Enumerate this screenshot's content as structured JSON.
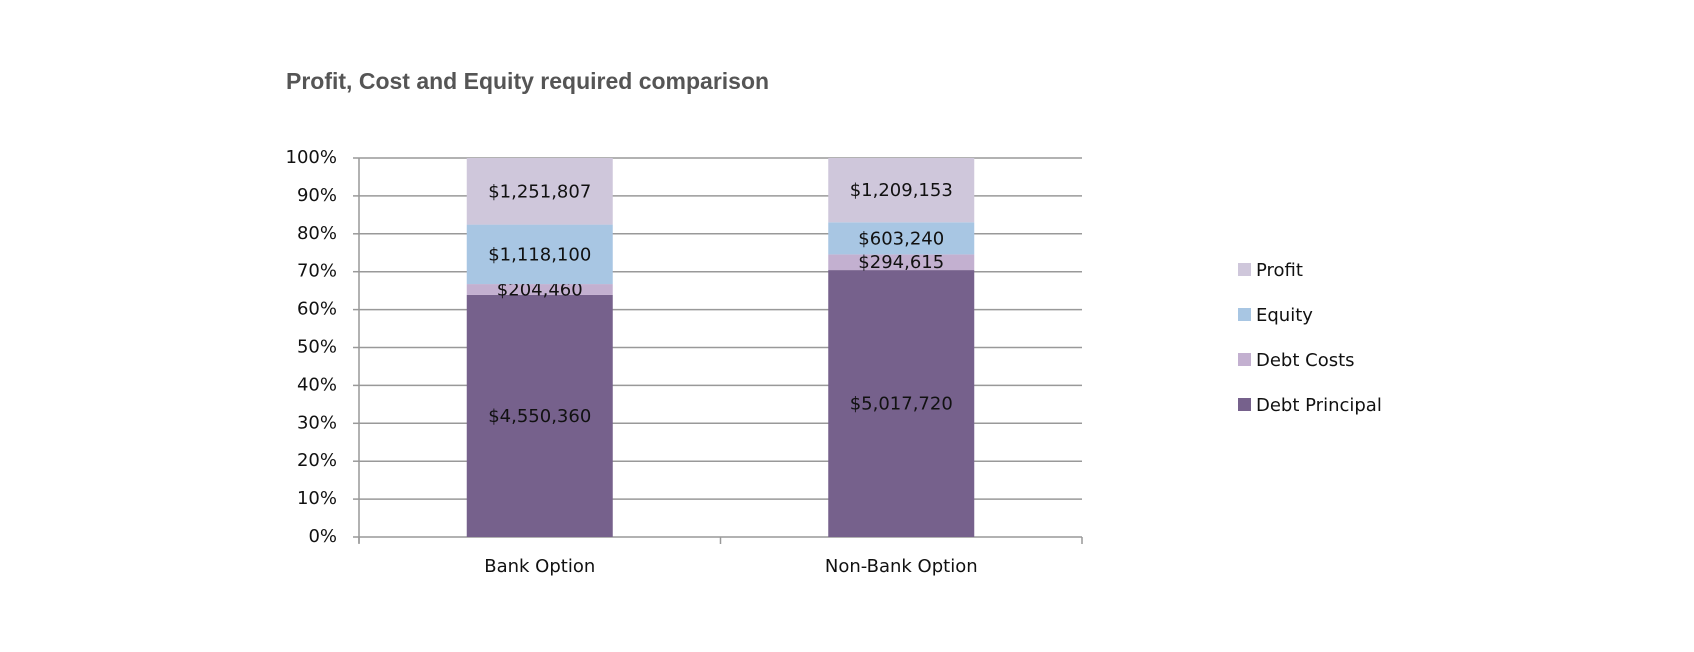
{
  "chart_data": {
    "type": "bar",
    "stacking": "percent",
    "title": "Profit, Cost and Equity required comparison",
    "categories": [
      "Bank Option",
      "Non-Bank Option"
    ],
    "series": [
      {
        "name": "Debt Principal",
        "color": "#76618c",
        "values": [
          4550360,
          5017720
        ],
        "value_labels": [
          "$4,550,360",
          "$5,017,720"
        ]
      },
      {
        "name": "Debt Costs",
        "color": "#c3b0d0",
        "values": [
          204460,
          294615
        ],
        "value_labels": [
          "$204,460",
          "$294,615"
        ]
      },
      {
        "name": "Equity",
        "color": "#a8c6e3",
        "values": [
          1118100,
          603240
        ],
        "value_labels": [
          "$1,118,100",
          "$603,240"
        ]
      },
      {
        "name": "Profit",
        "color": "#cfc7db",
        "values": [
          1251807,
          1209153
        ],
        "value_labels": [
          "$1,251,807",
          "$1,209,153"
        ]
      }
    ],
    "ylim": [
      0,
      100
    ],
    "yticks": [
      {
        "value": 0,
        "label": "0%"
      },
      {
        "value": 10,
        "label": "10%"
      },
      {
        "value": 20,
        "label": "20%"
      },
      {
        "value": 30,
        "label": "30%"
      },
      {
        "value": 40,
        "label": "40%"
      },
      {
        "value": 50,
        "label": "50%"
      },
      {
        "value": 60,
        "label": "60%"
      },
      {
        "value": 70,
        "label": "70%"
      },
      {
        "value": 80,
        "label": "80%"
      },
      {
        "value": 90,
        "label": "90%"
      },
      {
        "value": 100,
        "label": "100%"
      }
    ],
    "grid": true,
    "legend": "right"
  }
}
